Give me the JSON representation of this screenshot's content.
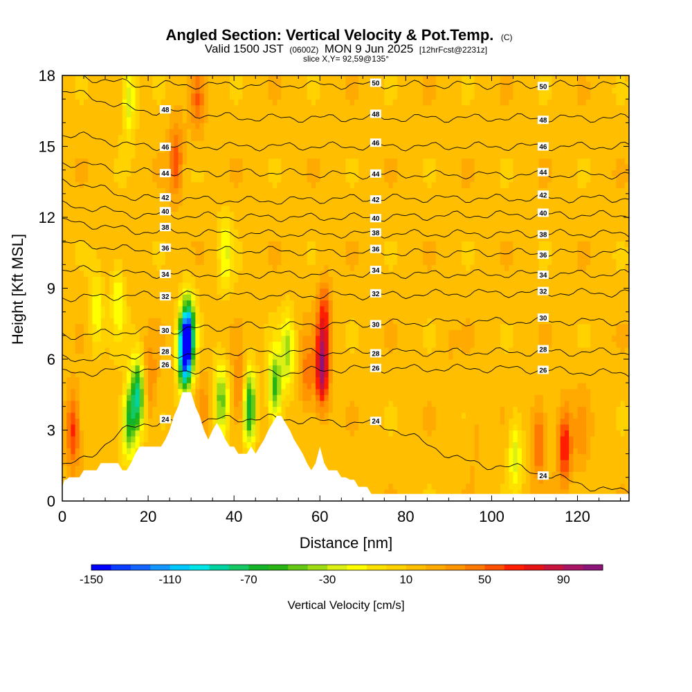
{
  "chart_data": {
    "type": "heatmap",
    "title": {
      "main": "Angled Section: Vertical Velocity & Pot.Temp.",
      "main_suffix": "(C)",
      "valid": "Valid 1500 JST",
      "valid_z": "(0600Z)",
      "valid_date": "MON 9 Jun 2025",
      "fcst": "[12hrFcst@2231z]",
      "slice": "slice X,Y= 92,59@135°"
    },
    "xlabel": "Distance [nm]",
    "ylabel": "Height [Kft MSL]",
    "xlim": [
      0,
      132
    ],
    "ylim": [
      0,
      18
    ],
    "x_ticks": [
      0,
      20,
      40,
      60,
      80,
      100,
      120
    ],
    "y_ticks": [
      0,
      3,
      6,
      9,
      12,
      15,
      18
    ],
    "terrain": {
      "x": [
        0,
        0.5,
        1,
        1.5,
        2,
        3,
        4,
        5,
        6,
        7,
        8,
        9,
        10,
        11,
        12,
        13,
        14,
        15,
        16,
        17,
        18,
        19,
        20,
        21,
        22,
        23,
        24,
        25,
        26,
        27,
        28,
        29,
        30,
        31,
        32,
        33,
        34,
        35,
        36,
        37,
        38,
        39,
        40,
        41,
        42,
        43,
        44,
        45,
        46,
        47,
        48,
        49,
        50,
        51,
        52,
        53,
        54,
        55,
        56,
        57,
        58,
        59,
        60,
        61,
        62,
        63,
        64,
        65,
        66,
        67,
        68,
        69,
        70,
        71,
        72,
        73,
        74,
        75,
        76,
        77,
        78,
        79,
        80
      ],
      "y": [
        0.6,
        0.9,
        0.9,
        1.0,
        1.0,
        1.0,
        1.0,
        1.3,
        1.3,
        1.3,
        1.3,
        1.6,
        1.6,
        1.6,
        1.6,
        1.6,
        1.3,
        1.3,
        1.6,
        2.0,
        2.3,
        2.3,
        2.3,
        2.3,
        2.3,
        2.3,
        2.6,
        3.0,
        3.6,
        4.0,
        4.6,
        4.6,
        4.6,
        4.0,
        3.6,
        3.0,
        2.6,
        3.0,
        3.3,
        3.0,
        2.6,
        2.3,
        2.3,
        2.0,
        2.0,
        2.0,
        2.3,
        2.0,
        2.3,
        2.6,
        3.0,
        3.3,
        3.6,
        3.6,
        3.3,
        3.0,
        2.6,
        2.3,
        2.0,
        1.6,
        1.3,
        1.6,
        2.3,
        1.6,
        1.3,
        1.3,
        1.3,
        1.0,
        1.0,
        0.9,
        0.9,
        0.6,
        0.6,
        0.6,
        0.3,
        0.3,
        0.3,
        0.3,
        0.3,
        0.3,
        0.3,
        0.3,
        0.3
      ]
    },
    "velocity_features": [
      {
        "x": 2.5,
        "y": 3.0,
        "value": 65
      },
      {
        "x": 15.5,
        "y": 3.3,
        "value": -55
      },
      {
        "x": 17.5,
        "y": 4.5,
        "value": -75
      },
      {
        "x": 20.5,
        "y": 5.0,
        "value": 40
      },
      {
        "x": 26.5,
        "y": 14.5,
        "value": 55
      },
      {
        "x": 28.5,
        "y": 6.3,
        "value": -130
      },
      {
        "x": 29.5,
        "y": 7.2,
        "value": -75
      },
      {
        "x": 31.5,
        "y": 17.0,
        "value": 45
      },
      {
        "x": 33.0,
        "y": 4.3,
        "value": 30
      },
      {
        "x": 37.0,
        "y": 4.3,
        "value": -45
      },
      {
        "x": 41.5,
        "y": 4.5,
        "value": 55
      },
      {
        "x": 43.5,
        "y": 4.0,
        "value": -75
      },
      {
        "x": 46.5,
        "y": 3.8,
        "value": 20
      },
      {
        "x": 49.5,
        "y": 4.8,
        "value": -55
      },
      {
        "x": 52.5,
        "y": 6.3,
        "value": -35
      },
      {
        "x": 57.0,
        "y": 5.3,
        "value": 45
      },
      {
        "x": 60.5,
        "y": 5.5,
        "value": 95
      },
      {
        "x": 61.0,
        "y": 7.8,
        "value": 60
      },
      {
        "x": 15.5,
        "y": 17.0,
        "value": -30
      },
      {
        "x": 105.5,
        "y": 2.0,
        "value": -25
      },
      {
        "x": 111.0,
        "y": 2.6,
        "value": 55
      },
      {
        "x": 117.0,
        "y": 2.3,
        "value": 70
      },
      {
        "x": 121.0,
        "y": 2.8,
        "value": 35
      },
      {
        "x": 90.0,
        "y": 6.5,
        "value": 20
      },
      {
        "x": 96.0,
        "y": 3.0,
        "value": 25
      },
      {
        "x": 8.0,
        "y": 8.0,
        "value": -20
      },
      {
        "x": 13.0,
        "y": 8.5,
        "value": -20
      },
      {
        "x": 38.0,
        "y": 10.5,
        "value": -20
      }
    ],
    "theta_contours": [
      {
        "value": 24,
        "levels": [
          1.5,
          3.3,
          3.5,
          3.3,
          1.5,
          0.4
        ]
      },
      {
        "value": 26,
        "levels": [
          5.4,
          5.6,
          5.4,
          5.6,
          5.6,
          5.4
        ]
      },
      {
        "value": 28,
        "levels": [
          6.0,
          6.2,
          6.3,
          6.3,
          6.3,
          6.3
        ]
      },
      {
        "value": 30,
        "levels": [
          7.0,
          7.2,
          7.4,
          7.5,
          7.6,
          7.6
        ]
      },
      {
        "value": 32,
        "levels": [
          8.6,
          8.7,
          8.7,
          8.7,
          8.8,
          8.8
        ]
      },
      {
        "value": 34,
        "levels": [
          9.8,
          9.6,
          9.6,
          9.6,
          9.6,
          9.6
        ]
      },
      {
        "value": 36,
        "levels": [
          10.9,
          10.6,
          10.6,
          10.5,
          10.5,
          10.5
        ]
      },
      {
        "value": 38,
        "levels": [
          11.8,
          11.4,
          11.3,
          11.3,
          11.3,
          11.3
        ]
      },
      {
        "value": 40,
        "levels": [
          12.5,
          12.1,
          12.0,
          12.0,
          12.1,
          12.1
        ]
      },
      {
        "value": 42,
        "levels": [
          13.5,
          12.8,
          12.7,
          12.8,
          12.8,
          12.8
        ]
      },
      {
        "value": 44,
        "levels": [
          14.3,
          13.9,
          13.9,
          13.8,
          13.8,
          13.8
        ]
      },
      {
        "value": 46,
        "levels": [
          15.5,
          15.0,
          15.0,
          15.0,
          15.0,
          15.0
        ]
      },
      {
        "value": 48,
        "levels": [
          17.3,
          16.5,
          16.2,
          16.2,
          16.2,
          16.2
        ]
      },
      {
        "value": 50,
        "levels": [
          18.0,
          17.6,
          17.6,
          17.6,
          17.6,
          17.6
        ]
      }
    ],
    "theta_contour_x": [
      0,
      20,
      45,
      70,
      100,
      132
    ],
    "colorbar": {
      "title": "Vertical Velocity [cm/s]",
      "levels": [
        -150,
        -140,
        -130,
        -120,
        -110,
        -100,
        -90,
        -80,
        -70,
        -60,
        -50,
        -40,
        -30,
        -20,
        -10,
        0,
        10,
        20,
        30,
        40,
        50,
        60,
        70,
        80,
        90,
        100,
        110
      ],
      "tick_labels": [
        "-150",
        "-110",
        "-70",
        "-30",
        "10",
        "50",
        "90"
      ],
      "colors": [
        "#0000ff",
        "#0a3cff",
        "#1464ff",
        "#1496ff",
        "#00c8ff",
        "#00e6e6",
        "#00d2a0",
        "#14c864",
        "#14b428",
        "#28b414",
        "#64c814",
        "#a0dc14",
        "#dcf014",
        "#ffff00",
        "#ffe100",
        "#ffd200",
        "#ffbe00",
        "#ffaa00",
        "#ff9600",
        "#ff7800",
        "#ff5000",
        "#ff1e00",
        "#e61414",
        "#c8143c",
        "#aa1464",
        "#8c1478"
      ]
    },
    "grid": false
  }
}
